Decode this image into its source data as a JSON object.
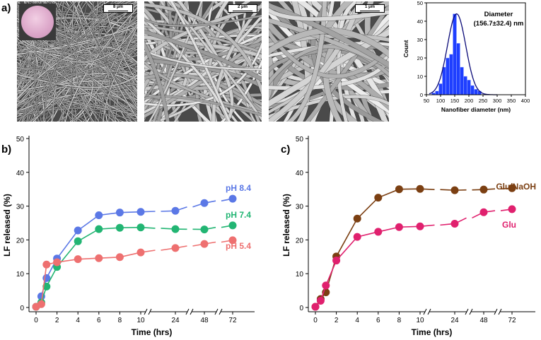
{
  "panel_labels": {
    "a": "a)",
    "b": "b)",
    "c": "c)"
  },
  "sem_images": [
    {
      "scale_label": "8 μm",
      "has_inset": true
    },
    {
      "scale_label": "2 μm",
      "has_inset": false
    },
    {
      "scale_label": "1 μm",
      "has_inset": false
    }
  ],
  "chart_data": [
    {
      "type": "bar",
      "panel": "a",
      "title": "Diameter (156.7±32.4) nm",
      "title_lines": [
        "Diameter",
        "(156.7±32.4) nm"
      ],
      "xlabel": "Nanofiber diameter (nm)",
      "ylabel": "Count",
      "xlim": [
        50,
        400
      ],
      "ylim": [
        0,
        50
      ],
      "xticks": [
        50,
        100,
        150,
        200,
        250,
        300,
        350,
        400
      ],
      "yticks": [
        0,
        10,
        20,
        30,
        40,
        50
      ],
      "bin_width": 12.5,
      "bins": [
        {
          "x": 75,
          "count": 1
        },
        {
          "x": 87.5,
          "count": 2
        },
        {
          "x": 100,
          "count": 6
        },
        {
          "x": 112.5,
          "count": 15
        },
        {
          "x": 125,
          "count": 20
        },
        {
          "x": 137.5,
          "count": 22
        },
        {
          "x": 150,
          "count": 44
        },
        {
          "x": 162.5,
          "count": 28
        },
        {
          "x": 175,
          "count": 15
        },
        {
          "x": 187.5,
          "count": 10
        },
        {
          "x": 200,
          "count": 8
        },
        {
          "x": 212.5,
          "count": 5
        },
        {
          "x": 225,
          "count": 3
        },
        {
          "x": 237.5,
          "count": 2
        }
      ],
      "fit": {
        "kind": "gaussian",
        "mean": 156.7,
        "sd": 32.4,
        "peak": 44
      },
      "colors": {
        "bars": "#1f3fff",
        "fit": "#0a0a78"
      }
    },
    {
      "type": "line",
      "panel": "b",
      "xlabel": "Time (hrs)",
      "ylabel": "LF released (%)",
      "ylim": [
        0,
        50
      ],
      "yticks": [
        0,
        10,
        20,
        30,
        40,
        50
      ],
      "x_categories": [
        "0",
        "2",
        "4",
        "6",
        "8",
        "10",
        "24",
        "48",
        "72"
      ],
      "series": [
        {
          "name": "pH 8.4",
          "color": "#5b78e6",
          "x": [
            0,
            0.5,
            1,
            2,
            4,
            6,
            8,
            10,
            24,
            48,
            72
          ],
          "y": [
            0.2,
            3.3,
            8.7,
            14.5,
            22.8,
            27.3,
            28.1,
            28.3,
            28.6,
            30.9,
            32.2
          ]
        },
        {
          "name": "pH 7.4",
          "color": "#22b573",
          "x": [
            0,
            0.5,
            1,
            2,
            4,
            6,
            8,
            10,
            24,
            48,
            72
          ],
          "y": [
            0.2,
            1.5,
            6.2,
            12.0,
            19.6,
            23.2,
            23.6,
            23.7,
            23.2,
            23.1,
            24.3
          ]
        },
        {
          "name": "pH 5.4",
          "color": "#ee7070",
          "x": [
            0,
            0.5,
            1,
            2,
            4,
            6,
            8,
            10,
            24,
            48,
            72
          ],
          "y": [
            0.2,
            1.0,
            12.7,
            13.4,
            14.3,
            14.6,
            14.9,
            16.3,
            17.6,
            18.8,
            19.9
          ]
        }
      ]
    },
    {
      "type": "line",
      "panel": "c",
      "xlabel": "Time (hrs)",
      "ylabel": "LF released (%)",
      "ylim": [
        0,
        50
      ],
      "yticks": [
        0,
        10,
        20,
        30,
        40,
        50
      ],
      "x_categories": [
        "0",
        "2",
        "4",
        "6",
        "8",
        "10",
        "24",
        "48",
        "72"
      ],
      "series": [
        {
          "name": "Glu/NaOH",
          "color": "#7b3f12",
          "x": [
            0,
            0.5,
            1,
            2,
            4,
            6,
            8,
            10,
            24,
            48,
            72
          ],
          "y": [
            0.2,
            2.5,
            4.5,
            15.1,
            26.3,
            32.5,
            35.0,
            35.1,
            34.7,
            34.9,
            35.3
          ]
        },
        {
          "name": "Glu",
          "color": "#e0206e",
          "x": [
            0,
            0.5,
            1,
            2,
            4,
            6,
            8,
            10,
            24,
            48,
            72
          ],
          "y": [
            0.2,
            2.0,
            6.5,
            13.9,
            20.9,
            22.4,
            23.8,
            24.0,
            24.8,
            28.2,
            29.1
          ]
        }
      ]
    }
  ]
}
